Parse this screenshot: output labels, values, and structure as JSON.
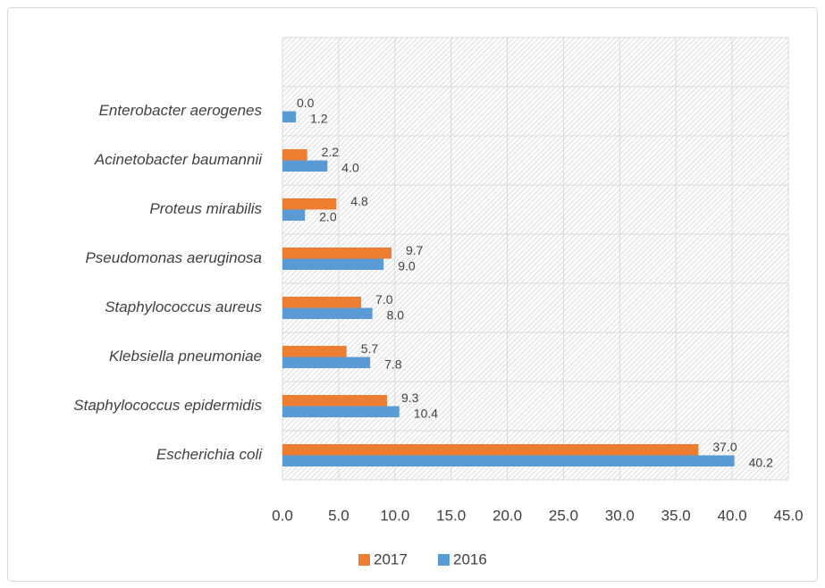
{
  "chart_data": {
    "type": "bar",
    "orientation": "horizontal",
    "categories": [
      "Escherichia coli",
      "Staphylococcus epidermidis",
      "Klebsiella pneumoniae",
      "Staphylococcus aureus",
      "Pseudomonas aeruginosa",
      "Proteus mirabilis",
      "Acinetobacter baumannii",
      "Enterobacter aerogenes",
      null
    ],
    "series": [
      {
        "name": "2017",
        "color": "#ed7d31",
        "values": [
          37.0,
          9.3,
          5.7,
          7.0,
          9.7,
          4.8,
          2.2,
          0.0,
          null
        ],
        "value_labels": [
          "37.0",
          "9.3",
          "5.7",
          "7.0",
          "9.7",
          "4.8",
          "2.2",
          "0.0",
          null
        ]
      },
      {
        "name": "2016",
        "color": "#5b9bd5",
        "values": [
          40.2,
          10.4,
          7.8,
          8.0,
          9.0,
          2.0,
          4.0,
          1.2,
          null
        ],
        "value_labels": [
          "40.2",
          "10.4",
          "7.8",
          "8.0",
          "9.0",
          "2.0",
          "4.0",
          "1.2",
          null
        ]
      }
    ],
    "xlim": [
      0,
      45
    ],
    "xticks": [
      {
        "value": 0,
        "label": "0.0"
      },
      {
        "value": 5,
        "label": "5.0"
      },
      {
        "value": 10,
        "label": "10.0"
      },
      {
        "value": 15,
        "label": "15.0"
      },
      {
        "value": 20,
        "label": "20.0"
      },
      {
        "value": 25,
        "label": "25.0"
      },
      {
        "value": 30,
        "label": "30.0"
      },
      {
        "value": 35,
        "label": "35.0"
      },
      {
        "value": 40,
        "label": "40.0"
      },
      {
        "value": 45,
        "label": "45.0"
      }
    ],
    "grid": true,
    "legend": "bottom"
  }
}
